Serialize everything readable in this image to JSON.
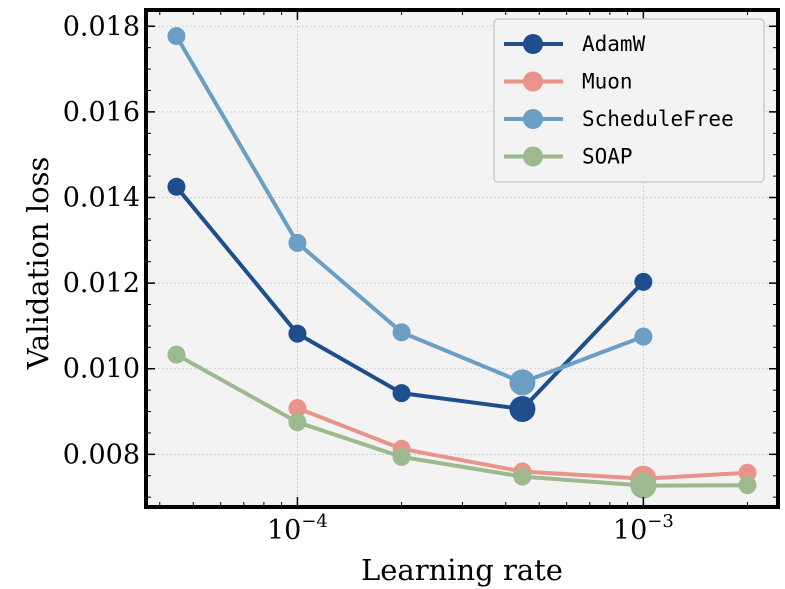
{
  "chart_data": {
    "type": "line",
    "xscale": "log",
    "xlabel": "Learning rate",
    "ylabel": "Validation loss",
    "xlim": [
      3.65e-05,
      0.00245
    ],
    "ylim": [
      0.00677,
      0.01838
    ],
    "x_ticks": [
      {
        "value": 0.0001,
        "base": "10",
        "exp": "−4"
      },
      {
        "value": 0.001,
        "base": "10",
        "exp": "−3"
      }
    ],
    "y_ticks": [
      {
        "value": 0.008,
        "label": "0.008"
      },
      {
        "value": 0.01,
        "label": "0.010"
      },
      {
        "value": 0.012,
        "label": "0.012"
      },
      {
        "value": 0.014,
        "label": "0.014"
      },
      {
        "value": 0.016,
        "label": "0.016"
      },
      {
        "value": 0.018,
        "label": "0.018"
      }
    ],
    "legend_position": "top-right",
    "series": [
      {
        "name": "AdamW",
        "color": "#1f4e8c",
        "x": [
          4.47e-05,
          0.0001,
          0.0002,
          0.000447,
          0.001
        ],
        "y": [
          0.01425,
          0.01082,
          0.00943,
          0.00906,
          0.01203
        ],
        "highlight_index": 3
      },
      {
        "name": "Muon",
        "color": "#e8948a",
        "x": [
          0.0001,
          0.0002,
          0.000447,
          0.001,
          0.002
        ],
        "y": [
          0.00908,
          0.00813,
          0.0076,
          0.00743,
          0.00757
        ],
        "highlight_index": 3
      },
      {
        "name": "ScheduleFree",
        "color": "#6b9ec4",
        "x": [
          4.47e-05,
          0.0001,
          0.0002,
          0.000447,
          0.001
        ],
        "y": [
          0.01777,
          0.01294,
          0.01085,
          0.00968,
          0.01075
        ],
        "highlight_index": 3
      },
      {
        "name": "SOAP",
        "color": "#9dba8e",
        "x": [
          4.47e-05,
          0.0001,
          0.0002,
          0.000447,
          0.001,
          0.002
        ],
        "y": [
          0.01033,
          0.00875,
          0.00794,
          0.00748,
          0.00727,
          0.00728
        ],
        "highlight_index": 4
      }
    ]
  }
}
